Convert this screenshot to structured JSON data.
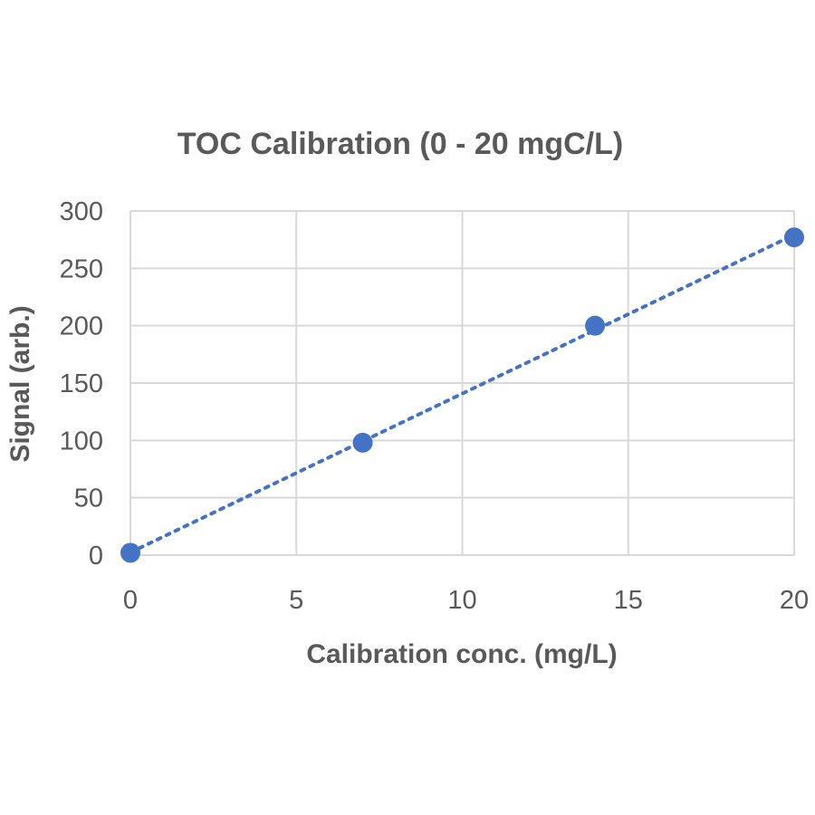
{
  "chart_data": {
    "type": "scatter",
    "title": "TOC Calibration (0 - 20 mgC/L)",
    "xlabel": "Calibration conc. (mg/L)",
    "ylabel": "Signal (arb.)",
    "xlim": [
      0,
      20
    ],
    "ylim": [
      0,
      300
    ],
    "xticks": [
      "0",
      "5",
      "10",
      "15",
      "20"
    ],
    "yticks": [
      "0",
      "50",
      "100",
      "150",
      "200",
      "250",
      "300"
    ],
    "grid": true,
    "legend": "none",
    "series": [
      {
        "x": [
          0,
          7,
          14,
          20
        ],
        "y": [
          2,
          98,
          200,
          277
        ],
        "color": "#4472c4",
        "marker": "circle",
        "trendline": "linear-dotted"
      }
    ]
  }
}
